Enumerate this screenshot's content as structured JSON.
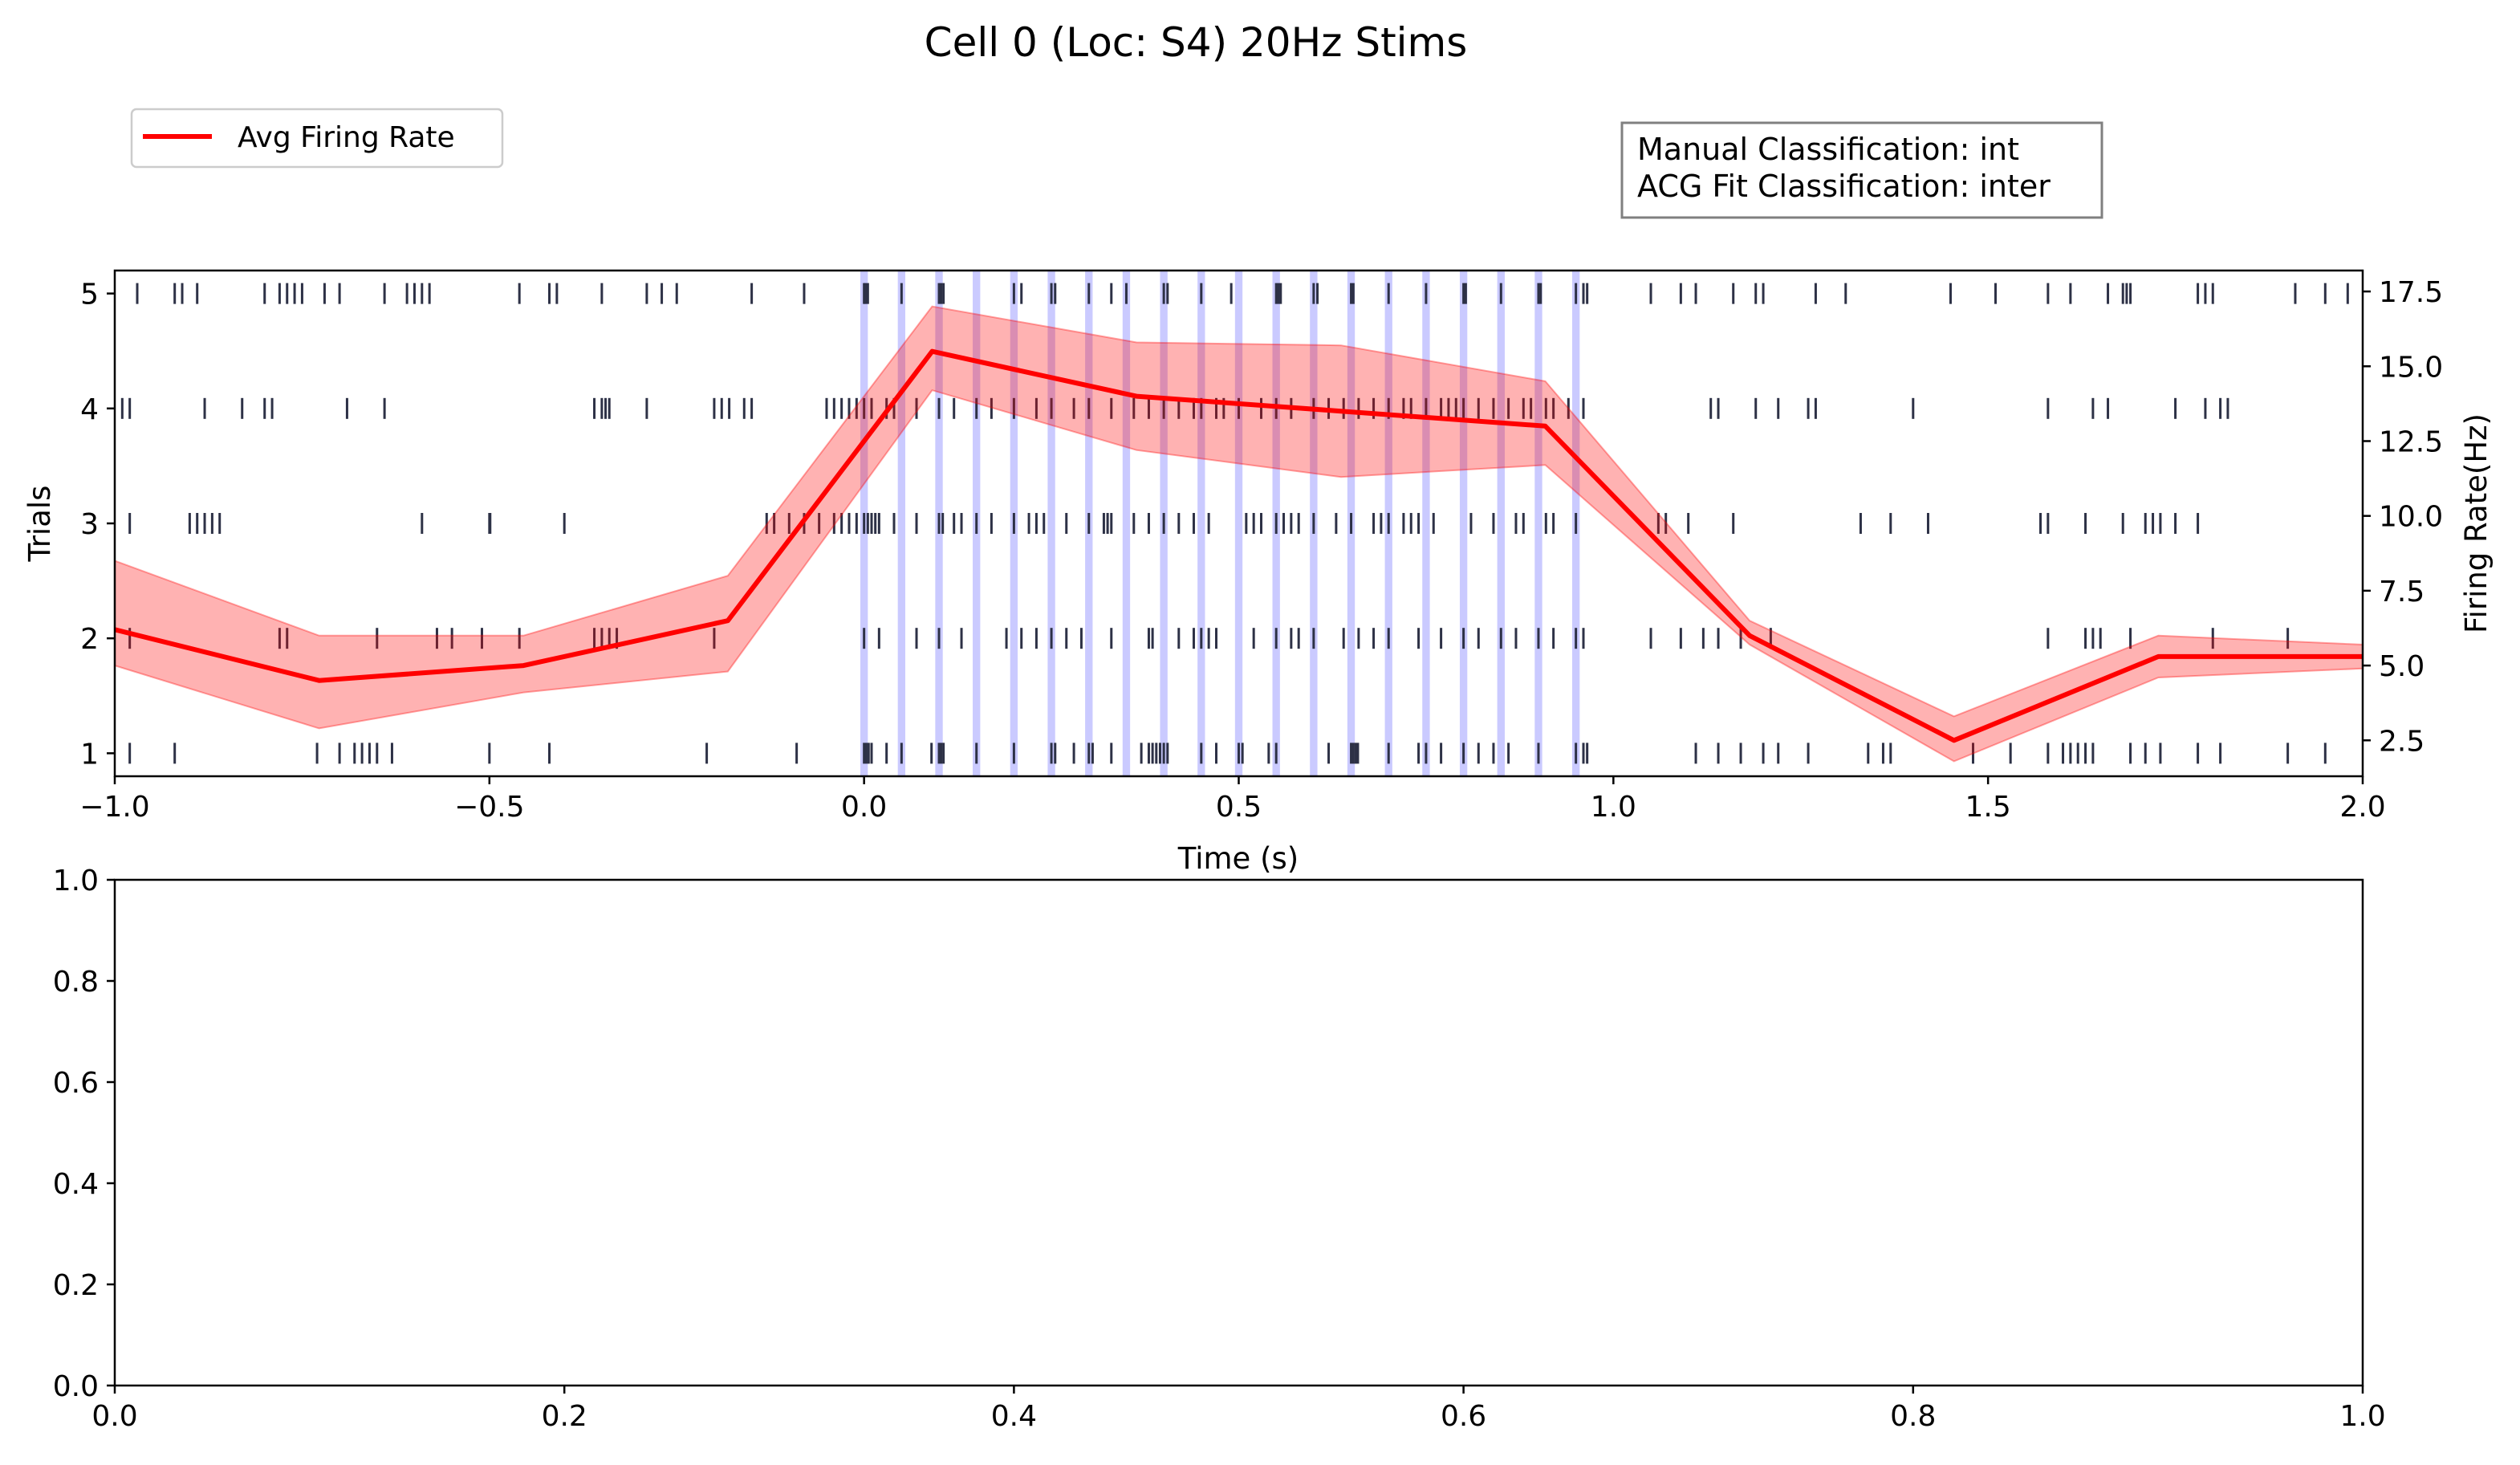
{
  "figure": {
    "title": "Cell 0 (Loc: S4) 20Hz Stims",
    "info_box": {
      "line1": "Manual Classification: int",
      "line2": "ACG Fit Classification: inter"
    }
  },
  "legend": {
    "label": "Avg Firing Rate",
    "color": "#ff0000",
    "placement": "top-left"
  },
  "chart_data": [
    {
      "type": "line",
      "subtype": "raster-with-firing-rate",
      "xlabel": "Time (s)",
      "ylabel_left": "Trials",
      "ylabel_right": "Firing Rate(Hz)",
      "xlim": [
        -1.0,
        2.0
      ],
      "ylim_left": [
        0.8,
        5.2
      ],
      "ylim_right": [
        1.3,
        18.2
      ],
      "x_ticks": [
        -1.0,
        -0.5,
        0.0,
        0.5,
        1.0,
        1.5,
        2.0
      ],
      "x_tick_labels": [
        "−1.0",
        "−0.5",
        "0.0",
        "0.5",
        "1.0",
        "1.5",
        "2.0"
      ],
      "y_left_ticks": [
        1,
        2,
        3,
        4,
        5
      ],
      "y_left_tick_labels": [
        "1",
        "2",
        "3",
        "4",
        "5"
      ],
      "y_right_ticks": [
        2.5,
        5.0,
        7.5,
        10.0,
        12.5,
        15.0,
        17.5
      ],
      "y_right_tick_labels": [
        "2.5",
        "5.0",
        "7.5",
        "10.0",
        "12.5",
        "15.0",
        "17.5"
      ],
      "grid": false,
      "stim_times": [
        0.0,
        0.05,
        0.1,
        0.15,
        0.2,
        0.25,
        0.3,
        0.35,
        0.4,
        0.45,
        0.5,
        0.55,
        0.6,
        0.65,
        0.7,
        0.75,
        0.8,
        0.85,
        0.9,
        0.95
      ],
      "stim_color": "#5050ff",
      "raster_color": "#2d3146",
      "series": [
        {
          "name": "Avg Firing Rate",
          "color": "#ff0000",
          "x": [
            -1.0,
            -0.7273,
            -0.4545,
            -0.1818,
            0.0909,
            0.3636,
            0.6364,
            0.9091,
            1.1818,
            1.4545,
            1.7273,
            2.0
          ],
          "y": [
            6.2,
            4.5,
            5.0,
            6.5,
            15.5,
            14.0,
            13.5,
            13.0,
            6.0,
            2.5,
            5.3,
            5.3
          ],
          "upper": [
            8.5,
            6.0,
            6.0,
            8.0,
            17.0,
            15.8,
            15.7,
            14.5,
            6.5,
            3.3,
            6.0,
            5.7
          ],
          "lower": [
            5.0,
            2.9,
            4.1,
            4.8,
            14.2,
            12.2,
            11.3,
            11.7,
            5.7,
            1.8,
            4.6,
            4.9
          ]
        }
      ],
      "raster": [
        {
          "trial": 1,
          "spikes": [
            -0.98,
            -0.92,
            -0.73,
            -0.7,
            -0.68,
            -0.67,
            -0.66,
            -0.65,
            -0.63,
            -0.5,
            -0.42,
            -0.21,
            -0.09,
            0.0,
            0.003,
            0.006,
            0.01,
            0.03,
            0.05,
            0.09,
            0.1,
            0.103,
            0.106,
            0.15,
            0.2,
            0.25,
            0.255,
            0.28,
            0.3,
            0.305,
            0.33,
            0.37,
            0.38,
            0.385,
            0.39,
            0.395,
            0.4,
            0.405,
            0.45,
            0.47,
            0.5,
            0.505,
            0.54,
            0.55,
            0.62,
            0.65,
            0.653,
            0.656,
            0.659,
            0.7,
            0.74,
            0.75,
            0.77,
            0.8,
            0.82,
            0.84,
            0.86,
            0.9,
            0.95,
            0.96,
            0.965,
            1.11,
            1.14,
            1.17,
            1.2,
            1.22,
            1.26,
            1.34,
            1.36,
            1.37,
            1.48,
            1.53,
            1.58,
            1.6,
            1.61,
            1.62,
            1.63,
            1.64,
            1.69,
            1.71,
            1.73,
            1.78,
            1.81,
            1.9,
            1.95
          ]
        },
        {
          "trial": 2,
          "spikes": [
            -0.98,
            -0.78,
            -0.77,
            -0.65,
            -0.57,
            -0.55,
            -0.51,
            -0.46,
            -0.36,
            -0.35,
            -0.34,
            -0.33,
            -0.2,
            0.0,
            0.02,
            0.07,
            0.1,
            0.13,
            0.19,
            0.21,
            0.23,
            0.25,
            0.27,
            0.29,
            0.33,
            0.38,
            0.385,
            0.42,
            0.44,
            0.45,
            0.46,
            0.47,
            0.52,
            0.55,
            0.57,
            0.58,
            0.6,
            0.64,
            0.66,
            0.68,
            0.7,
            0.74,
            0.77,
            0.8,
            0.82,
            0.85,
            0.87,
            0.9,
            0.92,
            0.95,
            0.96,
            1.05,
            1.09,
            1.12,
            1.14,
            1.17,
            1.21,
            1.58,
            1.63,
            1.64,
            1.65,
            1.69,
            1.8,
            1.9
          ]
        },
        {
          "trial": 3,
          "spikes": [
            -0.98,
            -0.9,
            -0.89,
            -0.88,
            -0.87,
            -0.86,
            -0.59,
            -0.5,
            -0.499,
            -0.4,
            -0.13,
            -0.12,
            -0.1,
            -0.08,
            -0.06,
            -0.04,
            -0.03,
            -0.02,
            -0.01,
            0.0,
            0.005,
            0.01,
            0.015,
            0.02,
            0.04,
            0.07,
            0.1,
            0.105,
            0.12,
            0.13,
            0.15,
            0.17,
            0.2,
            0.22,
            0.23,
            0.24,
            0.27,
            0.3,
            0.32,
            0.325,
            0.33,
            0.36,
            0.38,
            0.4,
            0.42,
            0.44,
            0.46,
            0.51,
            0.52,
            0.53,
            0.55,
            0.56,
            0.57,
            0.58,
            0.6,
            0.63,
            0.65,
            0.68,
            0.69,
            0.7,
            0.72,
            0.73,
            0.74,
            0.76,
            0.81,
            0.84,
            0.87,
            0.88,
            0.91,
            0.92,
            0.95,
            1.06,
            1.07,
            1.1,
            1.16,
            1.33,
            1.37,
            1.42,
            1.57,
            1.58,
            1.63,
            1.68,
            1.71,
            1.72,
            1.73,
            1.75,
            1.78
          ]
        },
        {
          "trial": 4,
          "spikes": [
            -0.99,
            -0.98,
            -0.88,
            -0.83,
            -0.8,
            -0.79,
            -0.69,
            -0.64,
            -0.36,
            -0.35,
            -0.345,
            -0.34,
            -0.29,
            -0.2,
            -0.19,
            -0.18,
            -0.16,
            -0.15,
            -0.05,
            -0.04,
            -0.03,
            -0.02,
            -0.01,
            0.0,
            0.01,
            0.03,
            0.04,
            0.07,
            0.1,
            0.12,
            0.15,
            0.17,
            0.2,
            0.23,
            0.25,
            0.28,
            0.3,
            0.33,
            0.36,
            0.38,
            0.4,
            0.42,
            0.44,
            0.45,
            0.47,
            0.48,
            0.5,
            0.53,
            0.55,
            0.57,
            0.6,
            0.62,
            0.64,
            0.66,
            0.68,
            0.7,
            0.72,
            0.73,
            0.75,
            0.77,
            0.78,
            0.79,
            0.8,
            0.82,
            0.84,
            0.86,
            0.88,
            0.89,
            0.91,
            0.92,
            0.94,
            0.96,
            1.13,
            1.14,
            1.19,
            1.22,
            1.26,
            1.27,
            1.4,
            1.58,
            1.64,
            1.66,
            1.75,
            1.79,
            1.81,
            1.82
          ]
        },
        {
          "trial": 5,
          "spikes": [
            -0.97,
            -0.92,
            -0.91,
            -0.89,
            -0.8,
            -0.78,
            -0.77,
            -0.76,
            -0.75,
            -0.72,
            -0.7,
            -0.64,
            -0.61,
            -0.6,
            -0.59,
            -0.58,
            -0.46,
            -0.42,
            -0.41,
            -0.35,
            -0.29,
            -0.27,
            -0.25,
            -0.15,
            -0.08,
            0.0,
            0.002,
            0.005,
            0.05,
            0.1,
            0.103,
            0.106,
            0.2,
            0.21,
            0.25,
            0.255,
            0.3,
            0.33,
            0.35,
            0.4,
            0.405,
            0.45,
            0.49,
            0.55,
            0.553,
            0.556,
            0.6,
            0.605,
            0.65,
            0.653,
            0.7,
            0.75,
            0.8,
            0.803,
            0.85,
            0.9,
            0.903,
            0.95,
            0.96,
            0.965,
            1.05,
            1.09,
            1.11,
            1.16,
            1.19,
            1.2,
            1.27,
            1.31,
            1.45,
            1.51,
            1.58,
            1.61,
            1.66,
            1.68,
            1.685,
            1.69,
            1.78,
            1.79,
            1.8,
            1.91,
            1.95,
            1.98
          ]
        }
      ]
    },
    {
      "type": "line",
      "subtype": "empty-axes",
      "xlim": [
        0.0,
        1.0
      ],
      "ylim": [
        0.0,
        1.0
      ],
      "x_ticks": [
        0.0,
        0.2,
        0.4,
        0.6,
        0.8,
        1.0
      ],
      "x_tick_labels": [
        "0.0",
        "0.2",
        "0.4",
        "0.6",
        "0.8",
        "1.0"
      ],
      "y_ticks": [
        0.0,
        0.2,
        0.4,
        0.6,
        0.8,
        1.0
      ],
      "y_tick_labels": [
        "0.0",
        "0.2",
        "0.4",
        "0.6",
        "0.8",
        "1.0"
      ],
      "grid": false,
      "series": []
    }
  ]
}
